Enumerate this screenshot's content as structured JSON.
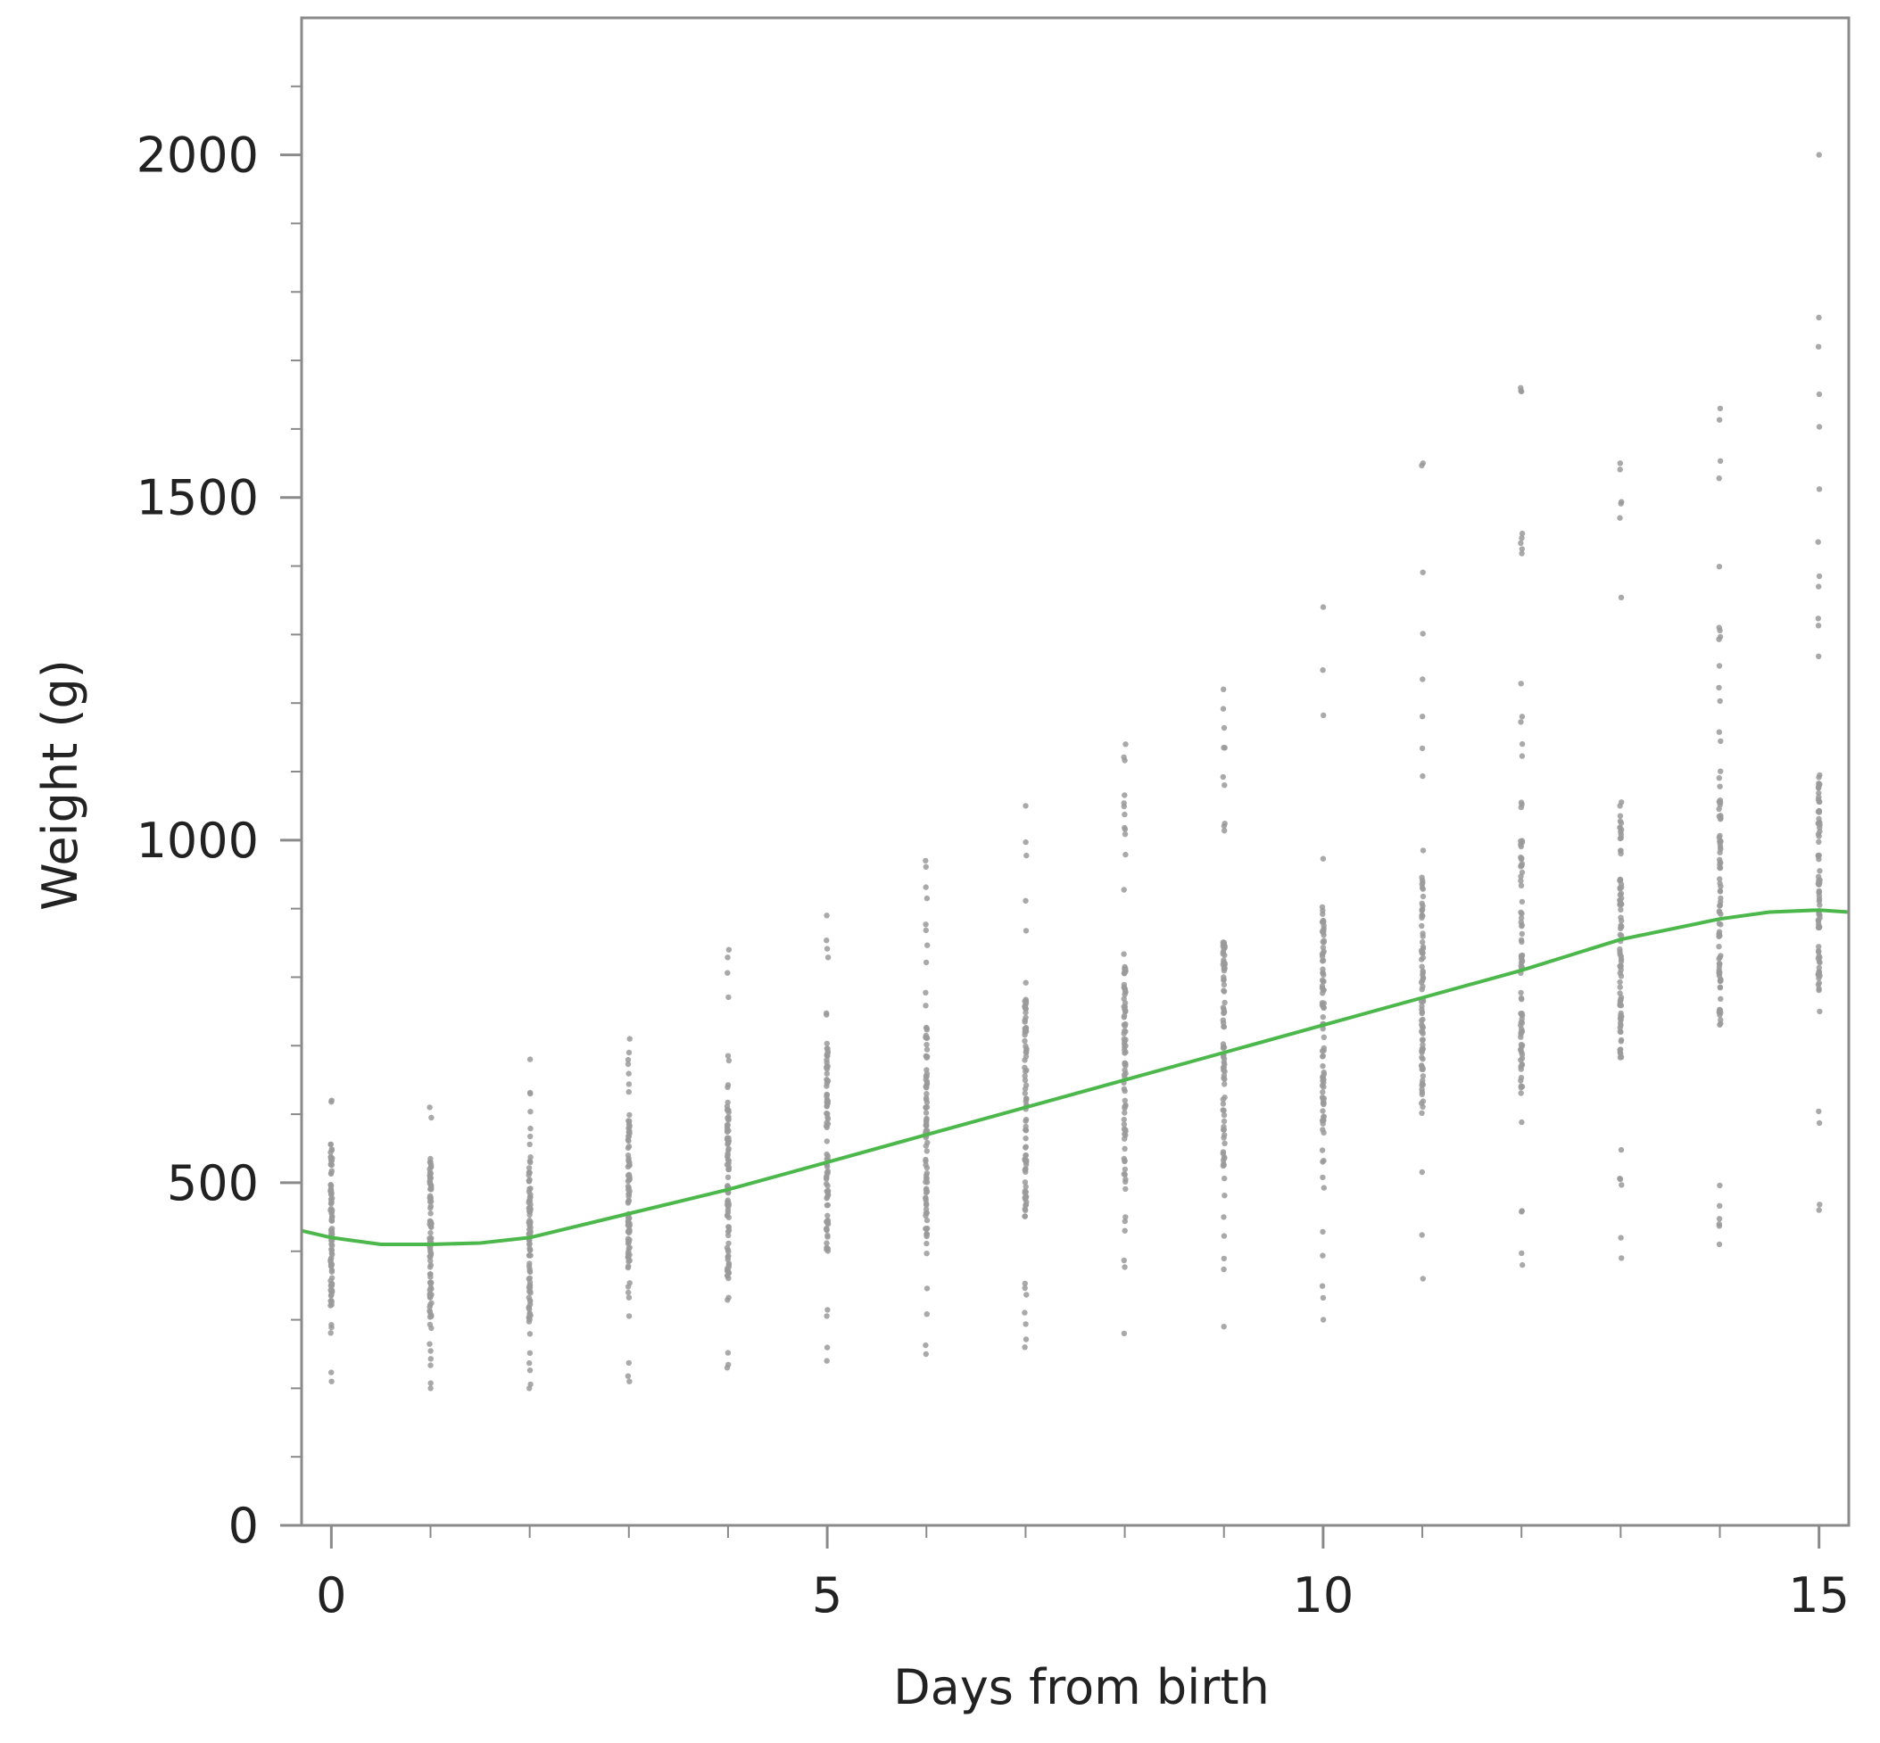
{
  "chart_data": {
    "type": "scatter",
    "title": "",
    "xlabel": "Days from birth",
    "ylabel": "Weight (g)",
    "xlim": [
      -0.3,
      15.3
    ],
    "ylim": [
      0,
      2200
    ],
    "x_ticks": [
      0,
      5,
      10,
      15
    ],
    "y_ticks": [
      0,
      500,
      1000,
      1500,
      2000
    ],
    "x_minor_ticks": [
      0,
      1,
      2,
      3,
      4,
      5,
      6,
      7,
      8,
      9,
      10,
      11,
      12,
      13,
      14,
      15
    ],
    "y_minor_ticks": [
      100,
      200,
      300,
      400,
      600,
      700,
      800,
      900,
      1100,
      1200,
      1300,
      1400,
      1600,
      1700,
      1800,
      1900,
      2100
    ],
    "grid": false,
    "legend": "none",
    "colors": {
      "points": "#9a9a9a",
      "smoother": "#4cb84c",
      "axis": "#8a8a8a",
      "text": "#222222"
    },
    "scatter_columns": [
      {
        "day": 0,
        "min": 210,
        "max": 620,
        "core_min": 320,
        "core_max": 560
      },
      {
        "day": 1,
        "min": 200,
        "max": 610,
        "core_min": 300,
        "core_max": 540
      },
      {
        "day": 2,
        "min": 200,
        "max": 680,
        "core_min": 300,
        "core_max": 540
      },
      {
        "day": 3,
        "min": 210,
        "max": 710,
        "core_min": 330,
        "core_max": 600
      },
      {
        "day": 4,
        "min": 230,
        "max": 840,
        "core_min": 360,
        "core_max": 620
      },
      {
        "day": 5,
        "min": 240,
        "max": 890,
        "core_min": 400,
        "core_max": 700
      },
      {
        "day": 6,
        "min": 250,
        "max": 970,
        "core_min": 420,
        "core_max": 730
      },
      {
        "day": 7,
        "min": 260,
        "max": 1050,
        "core_min": 450,
        "core_max": 770
      },
      {
        "day": 8,
        "min": 280,
        "max": 1140,
        "core_min": 490,
        "core_max": 820
      },
      {
        "day": 9,
        "min": 290,
        "max": 1220,
        "core_min": 520,
        "core_max": 860
      },
      {
        "day": 10,
        "min": 300,
        "max": 1340,
        "core_min": 560,
        "core_max": 900
      },
      {
        "day": 11,
        "min": 360,
        "max": 1550,
        "core_min": 600,
        "core_max": 950
      },
      {
        "day": 12,
        "min": 380,
        "max": 1660,
        "core_min": 630,
        "core_max": 1000
      },
      {
        "day": 13,
        "min": 390,
        "max": 1550,
        "core_min": 680,
        "core_max": 1060
      },
      {
        "day": 14,
        "min": 410,
        "max": 1630,
        "core_min": 720,
        "core_max": 1100
      },
      {
        "day": 15,
        "min": 460,
        "max": 2000,
        "core_min": 780,
        "core_max": 1100
      }
    ],
    "series": [
      {
        "kind": "smoother",
        "x": [
          -0.3,
          0,
          0.5,
          1,
          1.5,
          2,
          3,
          4,
          5,
          6,
          7,
          8,
          9,
          10,
          11,
          12,
          13,
          14,
          14.5,
          15,
          15.3
        ],
        "y": [
          430,
          420,
          410,
          410,
          412,
          420,
          455,
          490,
          530,
          570,
          610,
          650,
          690,
          730,
          770,
          810,
          855,
          885,
          895,
          898,
          895
        ]
      }
    ]
  }
}
